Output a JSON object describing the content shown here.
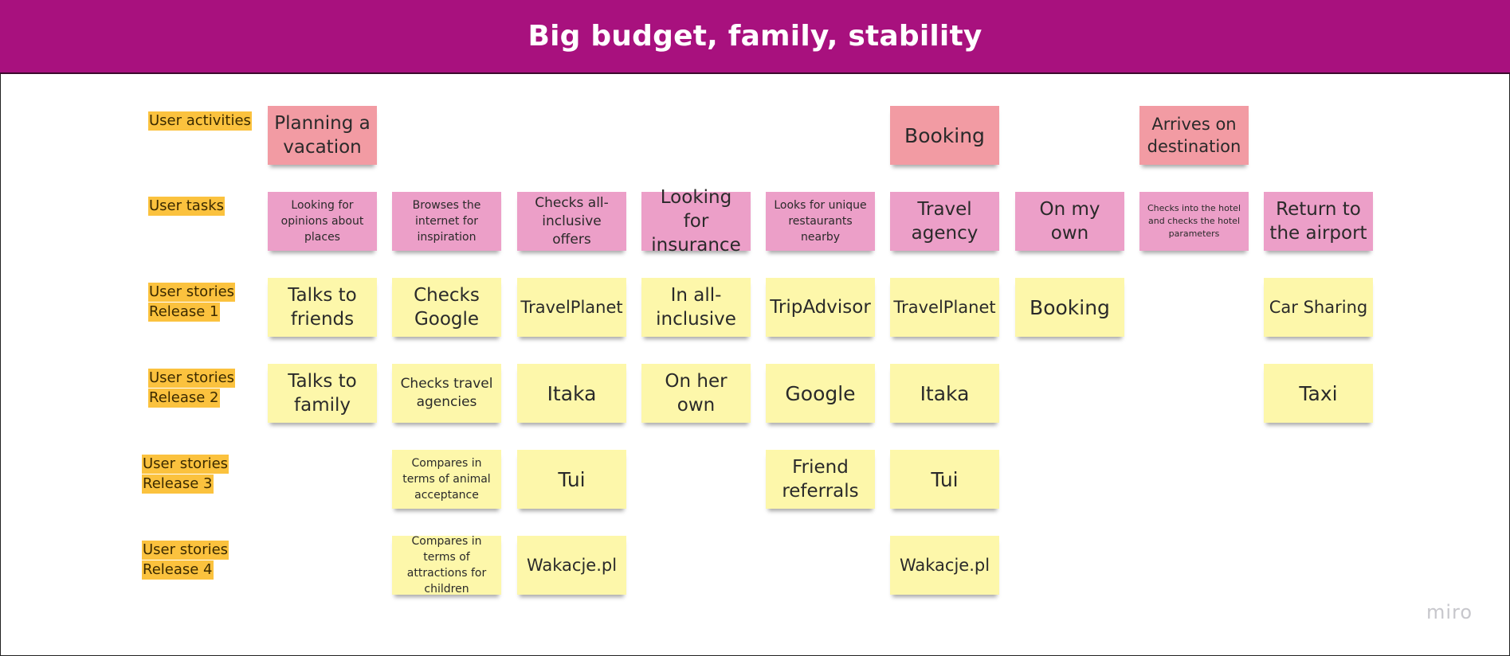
{
  "title": "Big budget, family, stability",
  "row_labels": [
    "User activities",
    "User tasks",
    "User stories\nRelease 1",
    "User stories\nRelease 2",
    "User stories\nRelease 3",
    "User stories\nRelease 4"
  ],
  "activities": [
    "Planning a vacation",
    "Booking",
    "Arrives on destination"
  ],
  "tasks": [
    "Looking for opinions about places",
    "Browses the internet for inspiration",
    "Checks all-inclusive offers",
    "Looking for insurance",
    "Looks for unique restaurants nearby",
    "Travel agency",
    "On my own",
    "Checks into the hotel and checks the hotel parameters",
    "Return to the airport"
  ],
  "release1": [
    "Talks to friends",
    "Checks Google",
    "TravelPlanet",
    "In all-inclusive",
    "TripAdvisor",
    "TravelPlanet",
    "Booking",
    "Car Sharing"
  ],
  "release2": [
    "Talks to family",
    "Checks travel agencies",
    "Itaka",
    "On her own",
    "Google",
    "Itaka",
    "Taxi"
  ],
  "release3": [
    "Compares in terms of animal acceptance",
    "Tui",
    "Friend referrals",
    "Tui"
  ],
  "release4": [
    "Compares in terms of attractions for children",
    "Wakacje.pl",
    "Wakacje.pl"
  ],
  "brand": "miro",
  "colors": {
    "header": "#a8117e",
    "label_highlight": "#fbc23e",
    "activity_note": "#f29ba3",
    "task_note": "#ec9fc8",
    "story_note": "#fdf7aa"
  }
}
